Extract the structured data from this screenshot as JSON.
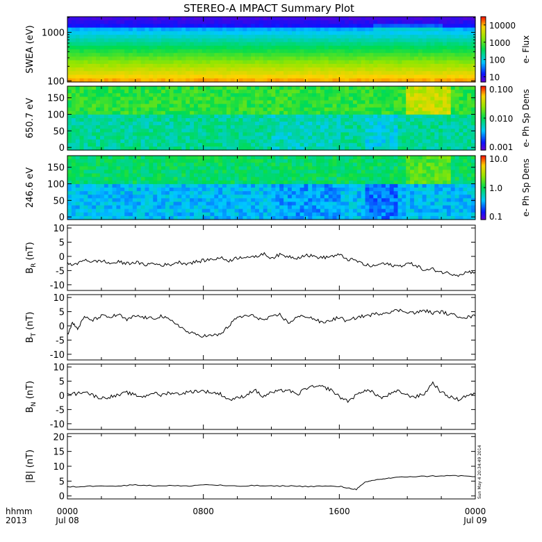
{
  "title": "STEREO-A IMPACT Summary Plot",
  "timestamp": "Sun May  4 20:34:49 2014",
  "time_axis": {
    "label_top": "hhmm",
    "label_bottom": "2013",
    "ticks": [
      {
        "hour": 0,
        "label": "0000",
        "date": "Jul 08"
      },
      {
        "hour": 8,
        "label": "0800",
        "date": ""
      },
      {
        "hour": 16,
        "label": "1600",
        "date": ""
      },
      {
        "hour": 24,
        "label": "0000",
        "date": "Jul 09"
      }
    ],
    "xlim": [
      0,
      24
    ]
  },
  "chart_data": [
    {
      "type": "heatmap",
      "name": "swea",
      "ylabel": "SWEA (eV)",
      "yscale": "log",
      "ylim": [
        95,
        2100
      ],
      "yticks": [
        {
          "v": 100,
          "label": "100"
        },
        {
          "v": 1000,
          "label": "1000"
        }
      ],
      "colorbar_label": "e- Flux",
      "colorbar_scale": "log",
      "colorbar_range": [
        5,
        30000
      ],
      "colorbar_ticks": [
        {
          "v": 10,
          "label": "10"
        },
        {
          "v": 100,
          "label": "100"
        },
        {
          "v": 1000,
          "label": "1000"
        },
        {
          "v": 10000,
          "label": "10000"
        }
      ]
    },
    {
      "type": "heatmap",
      "name": "pad650",
      "ylabel": "650.7 eV",
      "yscale": "linear",
      "ylim": [
        -8,
        185
      ],
      "yticks": [
        {
          "v": 0,
          "label": "0"
        },
        {
          "v": 50,
          "label": "50"
        },
        {
          "v": 100,
          "label": "100"
        },
        {
          "v": 150,
          "label": "150"
        }
      ],
      "colorbar_label": "e- Ph Sp Dens",
      "colorbar_scale": "log",
      "colorbar_range": [
        0.001,
        0.1
      ],
      "colorbar_ticks": [
        {
          "v": 0.001,
          "label": "0.001"
        },
        {
          "v": 0.01,
          "label": "0.010"
        },
        {
          "v": 0.1,
          "label": "0.100"
        }
      ]
    },
    {
      "type": "heatmap",
      "name": "pad246",
      "ylabel": "246.6 eV",
      "yscale": "linear",
      "ylim": [
        -8,
        185
      ],
      "yticks": [
        {
          "v": 0,
          "label": "0"
        },
        {
          "v": 50,
          "label": "50"
        },
        {
          "v": 100,
          "label": "100"
        },
        {
          "v": 150,
          "label": "150"
        }
      ],
      "colorbar_label": "e- Ph Sp Dens",
      "colorbar_scale": "log",
      "colorbar_range": [
        0.1,
        10
      ],
      "colorbar_ticks": [
        {
          "v": 0.1,
          "label": "0.1"
        },
        {
          "v": 1,
          "label": "1.0"
        },
        {
          "v": 10,
          "label": "10.0"
        }
      ]
    },
    {
      "type": "line",
      "name": "br",
      "ylabel": "B",
      "ylabel_sub": "R",
      "ylabel_unit": "(nT)",
      "ylim": [
        -12,
        11
      ],
      "yticks": [
        {
          "v": -10,
          "label": "-10"
        },
        {
          "v": -5,
          "label": "-5"
        },
        {
          "v": 0,
          "label": "0"
        },
        {
          "v": 5,
          "label": "5"
        },
        {
          "v": 10,
          "label": "10"
        }
      ],
      "x": [
        0,
        0.5,
        1,
        1.5,
        2,
        2.5,
        3,
        3.5,
        4,
        4.5,
        5,
        5.5,
        6,
        6.5,
        7,
        7.5,
        8,
        8.5,
        9,
        9.5,
        10,
        10.5,
        11,
        11.5,
        12,
        12.5,
        13,
        13.5,
        14,
        14.5,
        15,
        15.5,
        16,
        16.5,
        17,
        17.5,
        18,
        18.5,
        19,
        19.5,
        20,
        20.5,
        21,
        21.5,
        22,
        22.5,
        23,
        23.5,
        24
      ],
      "y": [
        -2.5,
        -3,
        -1,
        -2,
        -1.5,
        -2.5,
        -2,
        -2.5,
        -2,
        -3,
        -2.5,
        -3,
        -3,
        -2,
        -2.5,
        -2,
        -1.5,
        -1,
        -0.5,
        -1.5,
        -0.5,
        0,
        -0.5,
        1,
        -0.5,
        0.5,
        0,
        -0.5,
        0.5,
        0,
        -0.5,
        0,
        0.5,
        -1,
        -1.5,
        -3,
        -3.5,
        -2.5,
        -3,
        -3.5,
        -2.5,
        -3,
        -5,
        -4.5,
        -5.5,
        -6,
        -6.5,
        -5.5,
        -5.5
      ]
    },
    {
      "type": "line",
      "name": "bt",
      "ylabel": "B",
      "ylabel_sub": "T",
      "ylabel_unit": "(nT)",
      "ylim": [
        -12,
        11
      ],
      "yticks": [
        {
          "v": -10,
          "label": "-10"
        },
        {
          "v": -5,
          "label": "-5"
        },
        {
          "v": 0,
          "label": "0"
        },
        {
          "v": 5,
          "label": "5"
        },
        {
          "v": 10,
          "label": "10"
        }
      ],
      "x": [
        0,
        0.3,
        0.6,
        1,
        1.5,
        2,
        2.5,
        3,
        3.5,
        4,
        4.5,
        5,
        5.5,
        6,
        6.5,
        7,
        7.5,
        8,
        8.5,
        9,
        9.5,
        10,
        10.5,
        11,
        11.5,
        12,
        12.5,
        13,
        13.5,
        14,
        14.5,
        15,
        15.5,
        16,
        16.5,
        17,
        17.5,
        18,
        18.5,
        19,
        19.5,
        20,
        20.5,
        21,
        21.5,
        22,
        22.5,
        23,
        23.5,
        24
      ],
      "y": [
        -3,
        1,
        -1,
        3,
        2,
        3.5,
        3,
        4,
        2,
        3.5,
        3,
        2.5,
        3.5,
        2,
        0.5,
        -2,
        -3,
        -3.5,
        -3.5,
        -3,
        0,
        3,
        3.5,
        3.5,
        2,
        3,
        4,
        1,
        3,
        3.5,
        2.5,
        1,
        2,
        3,
        1.5,
        3,
        3.5,
        4,
        4.5,
        5,
        5.5,
        5,
        4.5,
        5.5,
        4.5,
        5,
        4,
        3.5,
        3,
        3.5
      ]
    },
    {
      "type": "line",
      "name": "bn",
      "ylabel": "B",
      "ylabel_sub": "N",
      "ylabel_unit": "(nT)",
      "ylim": [
        -12,
        11
      ],
      "yticks": [
        {
          "v": -10,
          "label": "-10"
        },
        {
          "v": -5,
          "label": "-5"
        },
        {
          "v": 0,
          "label": "0"
        },
        {
          "v": 5,
          "label": "5"
        },
        {
          "v": 10,
          "label": "10"
        }
      ],
      "x": [
        0,
        0.5,
        1,
        1.5,
        2,
        2.5,
        3,
        3.5,
        4,
        4.5,
        5,
        5.5,
        6,
        6.5,
        7,
        7.5,
        8,
        8.5,
        9,
        9.5,
        10,
        10.5,
        11,
        11.5,
        12,
        12.5,
        13,
        13.5,
        14,
        14.5,
        15,
        15.5,
        16,
        16.5,
        17,
        17.5,
        18,
        18.5,
        19,
        19.5,
        20,
        20.5,
        21,
        21.5,
        22,
        22.5,
        23,
        23.5,
        24
      ],
      "y": [
        1,
        0.5,
        1.5,
        0,
        -1,
        -0.5,
        0,
        1,
        0,
        -0.5,
        1,
        0,
        1,
        0.5,
        1,
        1.5,
        1.5,
        1,
        0.5,
        -1.5,
        -1,
        0,
        2,
        -0.5,
        1,
        1.5,
        2,
        0,
        2.5,
        3,
        3,
        2,
        -0.5,
        -2,
        0,
        2,
        1,
        -1,
        0.5,
        1.5,
        0,
        -0.5,
        0.5,
        4.5,
        1,
        -0.5,
        -1.5,
        0,
        0.5
      ]
    },
    {
      "type": "line",
      "name": "bmag",
      "ylabel": "|B|",
      "ylabel_sub": "",
      "ylabel_unit": "(nT)",
      "ylim": [
        -1,
        21
      ],
      "yticks": [
        {
          "v": 0,
          "label": "0"
        },
        {
          "v": 5,
          "label": "5"
        },
        {
          "v": 10,
          "label": "10"
        },
        {
          "v": 15,
          "label": "15"
        },
        {
          "v": 20,
          "label": "20"
        }
      ],
      "x": [
        0,
        1,
        2,
        3,
        4,
        5,
        6,
        7,
        8,
        9,
        10,
        11,
        12,
        13,
        14,
        15,
        16,
        16.5,
        17,
        17.5,
        18,
        18.5,
        19,
        20,
        21,
        22,
        23,
        24
      ],
      "y": [
        3,
        3.2,
        3.5,
        3.3,
        3.8,
        3.4,
        3.5,
        3.3,
        3.8,
        3.6,
        3.2,
        3.5,
        3.3,
        3.4,
        3.2,
        3.3,
        3.2,
        2.7,
        2.2,
        4.5,
        5.3,
        5.7,
        6,
        6.5,
        6.6,
        6.8,
        6.8,
        6.5
      ]
    }
  ]
}
